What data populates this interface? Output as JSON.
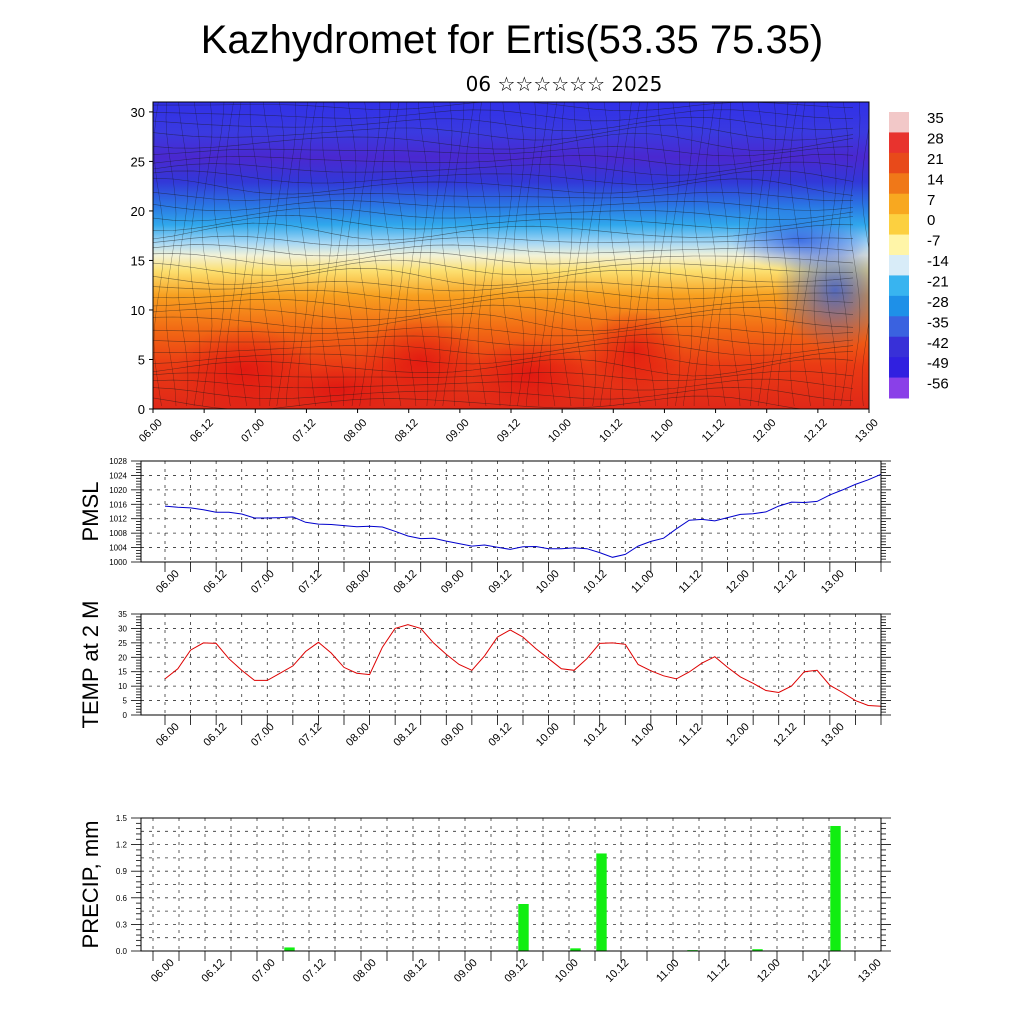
{
  "title": "Kazhydromet for Ertis(53.35 75.35)",
  "subtitle": "06 ☆☆☆☆☆☆ 2025",
  "x_tick_labels": [
    "06.00",
    "06.12",
    "07.00",
    "07.12",
    "08.00",
    "08.12",
    "09.00",
    "09.12",
    "10.00",
    "10.12",
    "11.00",
    "11.12",
    "12.00",
    "12.12",
    "13.00"
  ],
  "colorbar": {
    "labels": [
      "35",
      "28",
      "21",
      "14",
      "7",
      "0",
      "-7",
      "-14",
      "-21",
      "-28",
      "-35",
      "-42",
      "-49",
      "-56"
    ],
    "colors": [
      "#f2c8c8",
      "#e8332e",
      "#e84a1a",
      "#f07818",
      "#f8a820",
      "#fcd040",
      "#fff5a8",
      "#d8ecf8",
      "#38b4f0",
      "#1e90e8",
      "#3a62e0",
      "#3830d8",
      "#3020e0",
      "#8a40e8"
    ]
  },
  "chart_data": [
    {
      "type": "heatmap",
      "name": "cross-section",
      "x": [
        "06.00",
        "06.12",
        "07.00",
        "07.12",
        "08.00",
        "08.12",
        "09.00",
        "09.12",
        "10.00",
        "10.12",
        "11.00",
        "11.12",
        "12.00",
        "12.12",
        "13.00"
      ],
      "y_ticks": [
        0,
        5,
        10,
        15,
        20,
        25,
        30
      ],
      "ylim": [
        0,
        31
      ],
      "colorbar_range": [
        -56,
        35
      ]
    },
    {
      "type": "line",
      "ylabel": "PMSL",
      "ylim": [
        1000,
        1028
      ],
      "y_ticks": [
        1000,
        1004,
        1008,
        1012,
        1016,
        1020,
        1024,
        1028
      ],
      "color": "#0000cc",
      "x": [
        0,
        1,
        2,
        3,
        4,
        5,
        6,
        7,
        8,
        9,
        10,
        11,
        12,
        13,
        14,
        15,
        16,
        17,
        18,
        19,
        20,
        21,
        22,
        23,
        24,
        25,
        26,
        27,
        28,
        29,
        30,
        31,
        32,
        33,
        34,
        35,
        36,
        37,
        38,
        39,
        40,
        41,
        42,
        43,
        44,
        45,
        46,
        47,
        48,
        49,
        50,
        51,
        52,
        53,
        54,
        55,
        56
      ],
      "values": [
        1015.5,
        1015.2,
        1015,
        1014.5,
        1013.8,
        1013.8,
        1013.3,
        1012.2,
        1012.2,
        1012.3,
        1012.5,
        1011,
        1010.5,
        1010.4,
        1010.1,
        1009.8,
        1009.9,
        1009.7,
        1008.5,
        1007.2,
        1006.5,
        1006.6,
        1005.8,
        1005.1,
        1004.4,
        1004.7,
        1004.1,
        1003.5,
        1004.2,
        1004.3,
        1003.7,
        1003.7,
        1003.9,
        1003.7,
        1002.6,
        1001.3,
        1002.1,
        1004.4,
        1005.7,
        1006.6,
        1009.2,
        1011.6,
        1011.8,
        1011.4,
        1012.3,
        1013.2,
        1013.4,
        1013.9,
        1015.5,
        1016.6,
        1016.5,
        1016.8,
        1018.6,
        1020,
        1021.5,
        1022.8,
        1024.3
      ]
    },
    {
      "type": "line",
      "ylabel": "TEMP at 2 M",
      "ylim": [
        0,
        35
      ],
      "y_ticks": [
        0,
        5,
        10,
        15,
        20,
        25,
        30,
        35
      ],
      "color": "#dd0000",
      "x": [
        0,
        1,
        2,
        3,
        4,
        5,
        6,
        7,
        8,
        9,
        10,
        11,
        12,
        13,
        14,
        15,
        16,
        17,
        18,
        19,
        20,
        21,
        22,
        23,
        24,
        25,
        26,
        27,
        28,
        29,
        30,
        31,
        32,
        33,
        34,
        35,
        36,
        37,
        38,
        39,
        40,
        41,
        42,
        43,
        44,
        45,
        46,
        47,
        48,
        49,
        50,
        51,
        52,
        53,
        54,
        55,
        56
      ],
      "values": [
        12.5,
        16,
        22.5,
        25,
        24.8,
        19.5,
        15.5,
        12,
        12,
        14.5,
        17,
        22,
        25.2,
        21.5,
        16.5,
        14.5,
        14,
        23.5,
        30,
        31.3,
        30,
        25,
        21,
        17.5,
        15.5,
        20.5,
        27,
        29.5,
        27,
        23,
        19.5,
        16,
        15.5,
        19.5,
        24.8,
        25,
        24.5,
        17.5,
        15.3,
        13.6,
        12.5,
        14.9,
        18,
        20.2,
        16.5,
        13.2,
        11,
        8.5,
        7.8,
        10,
        15,
        15.5,
        10.3,
        7.8,
        5,
        3.3,
        3
      ]
    },
    {
      "type": "bar",
      "ylabel": "PRECIP, mm",
      "ylim": [
        0,
        1.5
      ],
      "y_ticks": [
        "0.0",
        "0.3",
        "0.6",
        "0.9",
        "1.2",
        "1.5"
      ],
      "color": "#11ee11",
      "x": [
        10.5,
        28.5,
        32.5,
        34.5,
        41.5,
        46.5,
        52.5
      ],
      "values": [
        0.04,
        0.53,
        0.03,
        1.1,
        0.01,
        0.02,
        1.41
      ]
    }
  ]
}
